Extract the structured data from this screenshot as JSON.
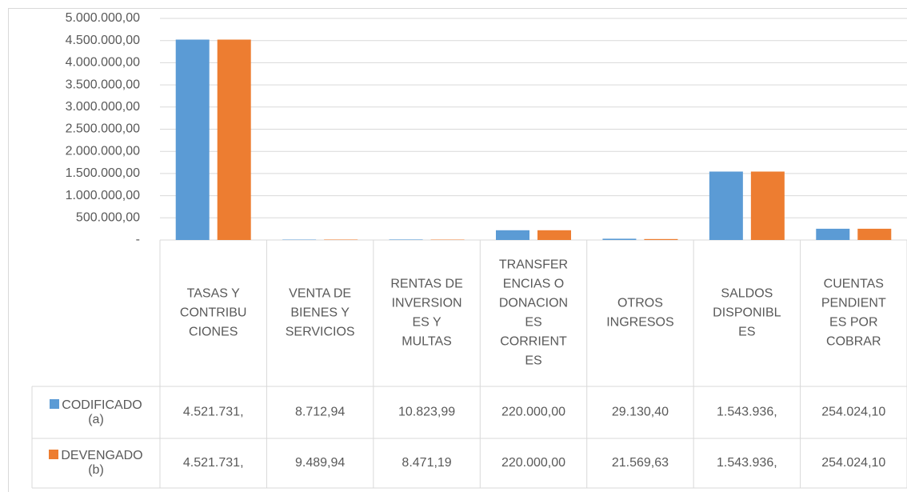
{
  "chart_data": {
    "type": "bar",
    "categories": [
      [
        "TASAS Y",
        "CONTRIBU",
        "CIONES"
      ],
      [
        "VENTA DE",
        "BIENES Y",
        "SERVICIOS"
      ],
      [
        "RENTAS DE",
        "INVERSION",
        "ES Y",
        "MULTAS"
      ],
      [
        "TRANSFER",
        "ENCIAS O",
        "DONACION",
        "ES",
        "CORRIENT",
        "ES"
      ],
      [
        "OTROS",
        "INGRESOS"
      ],
      [
        "SALDOS",
        "DISPONIBL",
        "ES"
      ],
      [
        "CUENTAS",
        "PENDIENT",
        "ES POR",
        "COBRAR"
      ]
    ],
    "series": [
      {
        "name": "CODIFICADO (a)",
        "color": "#5b9bd5",
        "values": [
          4521731,
          8712.94,
          10823.99,
          220000,
          29130.4,
          1543936,
          254024.1
        ],
        "value_labels": [
          "4.521.731,",
          "8.712,94",
          "10.823,99",
          "220.000,00",
          "29.130,40",
          "1.543.936,",
          "254.024,10"
        ]
      },
      {
        "name": "DEVENGADO (b)",
        "color": "#ed7d31",
        "values": [
          4521731,
          9489.94,
          8471.19,
          220000,
          21569.63,
          1543936,
          254024.1
        ],
        "value_labels": [
          "4.521.731,",
          "9.489,94",
          "8.471,19",
          "220.000,00",
          "21.569,63",
          "1.543.936,",
          "254.024,10"
        ]
      }
    ],
    "ylim": [
      0,
      5000000
    ],
    "yticks": [
      {
        "value": 0,
        "label": "-"
      },
      {
        "value": 500000,
        "label": "500.000,00"
      },
      {
        "value": 1000000,
        "label": "1.000.000,00"
      },
      {
        "value": 1500000,
        "label": "1.500.000,00"
      },
      {
        "value": 2000000,
        "label": "2.000.000,00"
      },
      {
        "value": 2500000,
        "label": "2.500.000,00"
      },
      {
        "value": 3000000,
        "label": "3.000.000,00"
      },
      {
        "value": 3500000,
        "label": "3.500.000,00"
      },
      {
        "value": 4000000,
        "label": "4.000.000,00"
      },
      {
        "value": 4500000,
        "label": "4.500.000,00"
      },
      {
        "value": 5000000,
        "label": "5.000.000,00"
      }
    ],
    "grid": true
  }
}
